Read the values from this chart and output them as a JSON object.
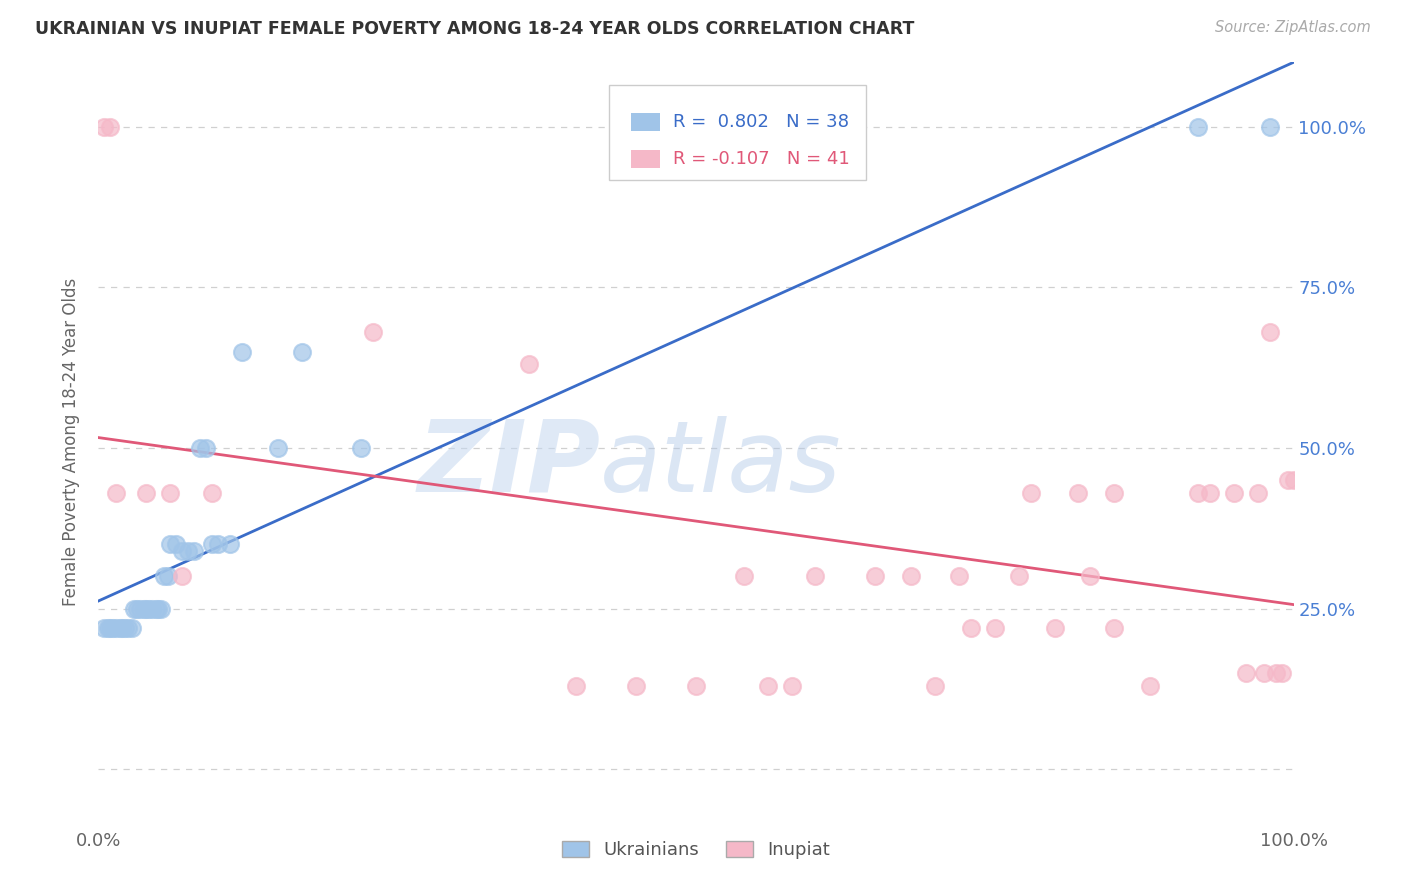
{
  "title": "UKRAINIAN VS INUPIAT FEMALE POVERTY AMONG 18-24 YEAR OLDS CORRELATION CHART",
  "source": "Source: ZipAtlas.com",
  "ylabel": "Female Poverty Among 18-24 Year Olds",
  "bg_color": "#ffffff",
  "grid_color": "#d0d0d0",
  "ukrainian_color": "#a0c4e8",
  "inupiat_color": "#f5b8c8",
  "line_ukrainian_color": "#3a6cc8",
  "line_inupiat_color": "#e05878",
  "R_ukrainian": 0.802,
  "N_ukrainian": 38,
  "R_inupiat": -0.107,
  "N_inupiat": 41,
  "watermark_zip": "ZIP",
  "watermark_atlas": "atlas",
  "ukrainian_x": [
    0.005,
    0.008,
    0.01,
    0.012,
    0.015,
    0.018,
    0.02,
    0.022,
    0.025,
    0.028,
    0.03,
    0.032,
    0.035,
    0.038,
    0.04,
    0.042,
    0.045,
    0.048,
    0.05,
    0.052,
    0.055,
    0.058,
    0.06,
    0.065,
    0.07,
    0.075,
    0.08,
    0.085,
    0.09,
    0.095,
    0.1,
    0.11,
    0.12,
    0.15,
    0.17,
    0.22,
    0.92,
    0.98
  ],
  "ukrainian_y": [
    0.22,
    0.22,
    0.22,
    0.22,
    0.22,
    0.22,
    0.22,
    0.22,
    0.22,
    0.22,
    0.25,
    0.25,
    0.25,
    0.25,
    0.25,
    0.25,
    0.25,
    0.25,
    0.25,
    0.25,
    0.3,
    0.3,
    0.35,
    0.35,
    0.34,
    0.34,
    0.34,
    0.5,
    0.5,
    0.35,
    0.35,
    0.35,
    0.65,
    0.5,
    0.65,
    0.5,
    1.0,
    1.0
  ],
  "inupiat_x": [
    0.005,
    0.01,
    0.015,
    0.04,
    0.06,
    0.07,
    0.095,
    0.23,
    0.36,
    0.4,
    0.45,
    0.5,
    0.54,
    0.56,
    0.58,
    0.6,
    0.65,
    0.68,
    0.7,
    0.72,
    0.73,
    0.75,
    0.77,
    0.78,
    0.8,
    0.82,
    0.83,
    0.85,
    0.85,
    0.88,
    0.92,
    0.93,
    0.95,
    0.97,
    0.98,
    0.96,
    0.975,
    0.985,
    0.99,
    0.995,
    1.0
  ],
  "inupiat_y": [
    1.0,
    1.0,
    0.43,
    0.43,
    0.43,
    0.3,
    0.43,
    0.68,
    0.63,
    0.13,
    0.13,
    0.13,
    0.3,
    0.13,
    0.13,
    0.3,
    0.3,
    0.3,
    0.13,
    0.3,
    0.22,
    0.22,
    0.3,
    0.43,
    0.22,
    0.43,
    0.3,
    0.43,
    0.22,
    0.13,
    0.43,
    0.43,
    0.43,
    0.43,
    0.68,
    0.15,
    0.15,
    0.15,
    0.15,
    0.45,
    0.45
  ],
  "xlim": [
    0.0,
    1.0
  ],
  "ylim": [
    -0.08,
    1.1
  ],
  "yticks": [
    0.0,
    0.25,
    0.5,
    0.75,
    1.0
  ],
  "ytick_labels_right": [
    "",
    "25.0%",
    "50.0%",
    "75.0%",
    "100.0%"
  ],
  "xticks": [
    0.0,
    0.25,
    0.5,
    0.75,
    1.0
  ],
  "xtick_labels": [
    "0.0%",
    "",
    "",
    "",
    "100.0%"
  ]
}
